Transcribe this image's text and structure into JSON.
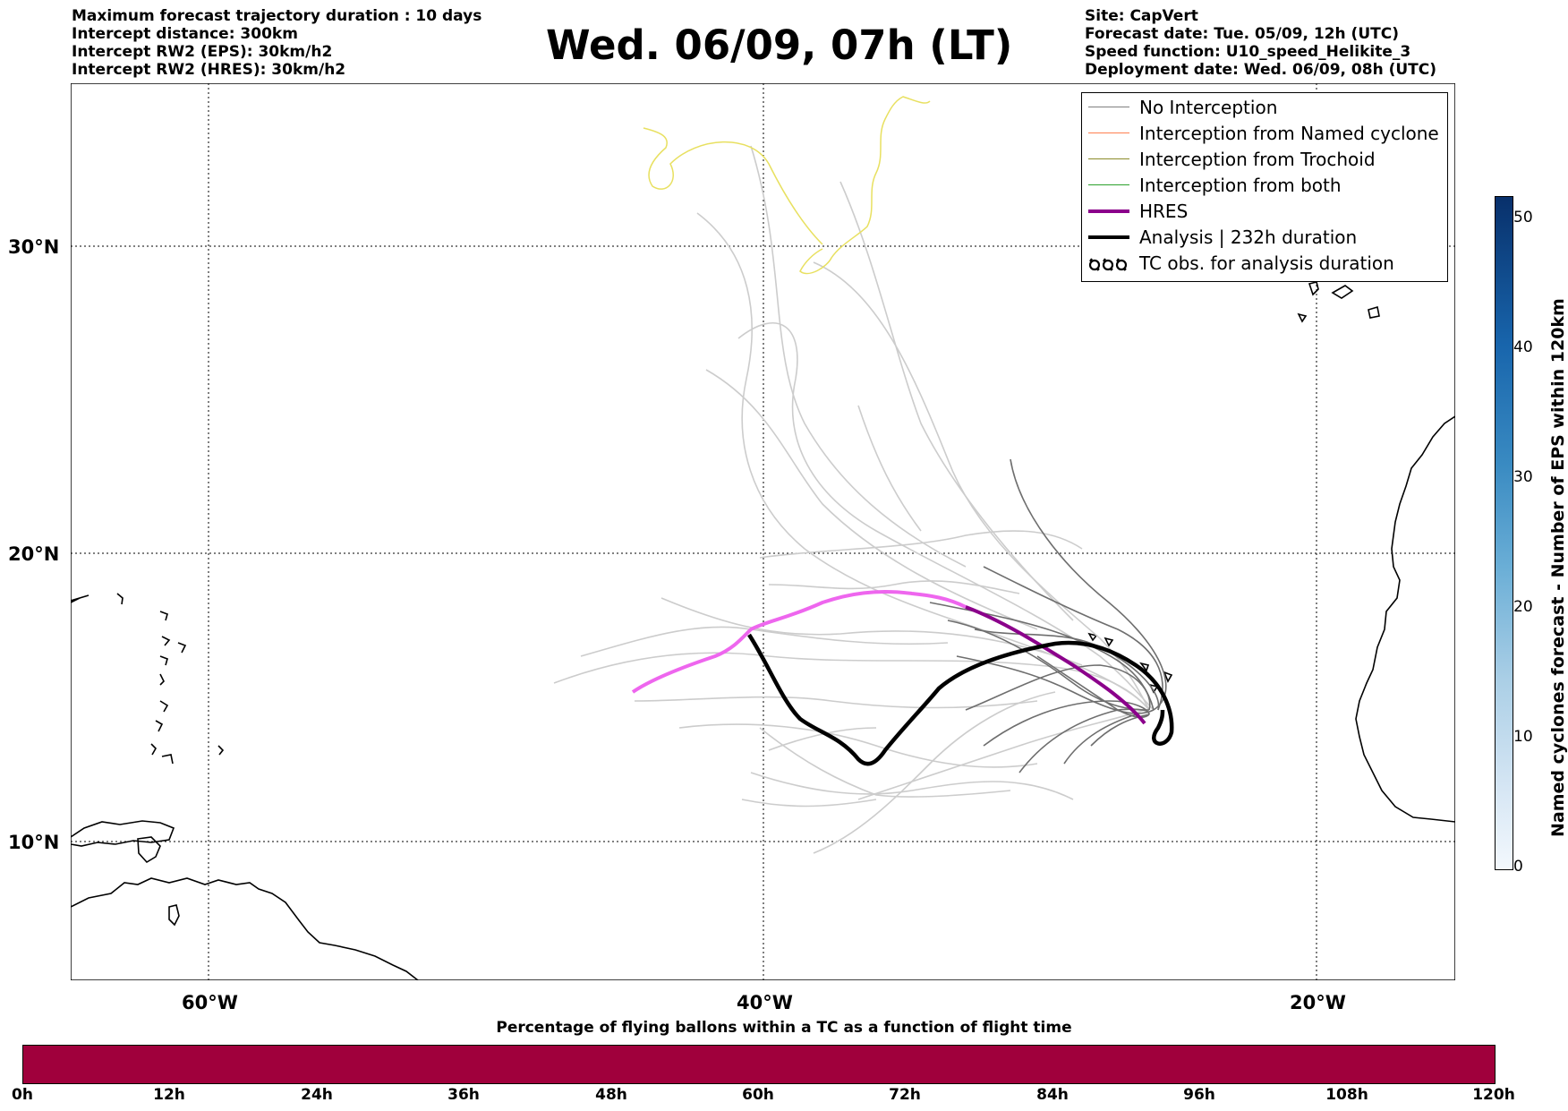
{
  "header": {
    "left_lines": [
      "Maximum forecast trajectory duration : 10 days",
      "Intercept distance: 300km",
      "Intercept RW2 (EPS):  30km/h2",
      "Intercept RW2 (HRES): 30km/h2"
    ],
    "title": "Wed. 06/09, 07h (LT)",
    "right_lines": [
      "Site: CapVert",
      "Forecast date: Tue. 05/09, 12h (UTC)",
      "Speed function: U10_speed_Helikite_3",
      "Deployment date: Wed. 06/09, 08h (UTC)"
    ]
  },
  "map": {
    "lat_labels": [
      "30°N",
      "20°N",
      "10°N"
    ],
    "lon_labels": [
      "60°W",
      "40°W",
      "20°W"
    ],
    "colors": {
      "no_interception": "#808080",
      "named_cyclone": "#ff7f50",
      "trochoid": "#8b8b2a",
      "both": "#2ca02c",
      "hres": "#8b008b",
      "hres_light": "#ee66ee",
      "analysis": "#000000",
      "tc_obs": "#e8e060",
      "trajectory_light": "#cccccc"
    }
  },
  "legend": {
    "items": [
      {
        "label": "No Interception",
        "icon": "gray-line"
      },
      {
        "label": "Interception from Named cyclone",
        "icon": "coral-line"
      },
      {
        "label": "Interception from Trochoid",
        "icon": "olive-line"
      },
      {
        "label": "Interception from both",
        "icon": "green-line"
      },
      {
        "label": "HRES",
        "icon": "purple-line"
      },
      {
        "label": "Analysis | 232h duration",
        "icon": "black-line"
      },
      {
        "label": "TC obs. for analysis duration",
        "icon": "tc-symbol"
      }
    ]
  },
  "colorbar_right": {
    "label": "Named cyclones forecast - Number of EPS within 120km",
    "ticks": [
      "0",
      "10",
      "20",
      "30",
      "40",
      "50"
    ]
  },
  "colorbar_bottom": {
    "title": "Percentage of flying ballons within a TC as a function of flight time",
    "ticks": [
      "0h",
      "12h",
      "24h",
      "36h",
      "48h",
      "60h",
      "72h",
      "84h",
      "96h",
      "108h",
      "120h"
    ],
    "color": "#a0003c"
  }
}
